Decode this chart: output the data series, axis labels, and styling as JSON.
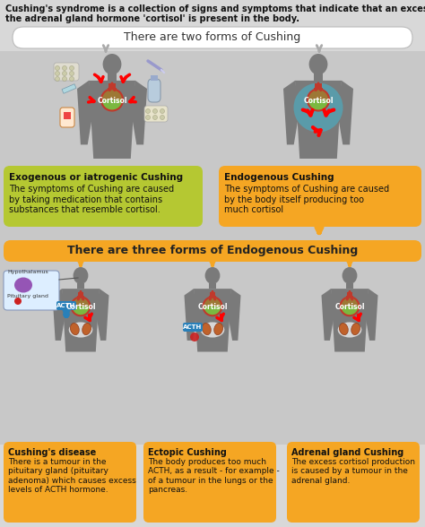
{
  "bg_color": "#d8d8d8",
  "top_text_line1": "Cushing's syndrome is a collection of signs and symptoms that indicate that an excessive amount of",
  "top_text_line2": "the adrenal gland hormone 'cortisol' is present in the body.",
  "section1_title": "There are two forms of Cushing",
  "section2_title": "There are three forms of Endogenous Cushing",
  "box1_title": "Exogenous or iatrogenic Cushing",
  "box1_text": "The symptoms of Cushing are caused\nby taking medication that contains\nsubstances that resemble cortisol.",
  "box1_bg": "#b5c832",
  "box2_title": "Endogenous Cushing",
  "box2_text": "The symptoms of Cushing are caused\nby the body itself producing too\nmuch cortisol",
  "box2_bg": "#f5a623",
  "box3_title": "Cushing's disease",
  "box3_text": "There is a tumour in the\npituitary gland (pituitary\nadenoma) which causes excess\nlevels of ACTH hormone.",
  "box3_bg": "#f5a623",
  "box4_title": "Ectopic Cushing",
  "box4_text": "The body produces too much\nACTH, as a result - for example -\nof a tumour in the lungs or the\npancreas.",
  "box4_bg": "#f5a623",
  "box5_title": "Adrenal gland Cushing",
  "box5_text": "The excess cortisol production\nis caused by a tumour in the\nadrenal gland.",
  "box5_bg": "#f5a623",
  "body_color": "#7a7a7a",
  "cortisol_green": "#7ab840",
  "cortisol_red": "#c0392b",
  "acth_blue": "#2980b9",
  "kidney_color": "#c0622b",
  "hypo_color": "#8e44ad",
  "arrow_orange": "#f5a623",
  "arrow_gray": "#aaaaaa",
  "white_bg": "#ffffff",
  "section2_mid_bg": "#c8c8c8"
}
